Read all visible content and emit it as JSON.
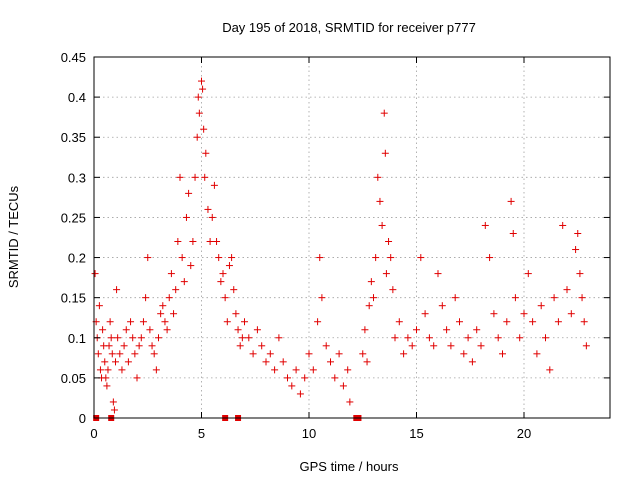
{
  "chart_data": {
    "type": "scatter",
    "title": "Day 195 of 2018, SRMTID for receiver p777",
    "xlabel": "GPS time / hours",
    "ylabel": "SRMTID / TECUs",
    "xlim": [
      0,
      24
    ],
    "ylim": [
      0,
      0.45
    ],
    "xticks": [
      0,
      5,
      10,
      15,
      20
    ],
    "yticks": [
      0,
      0.05,
      0.1,
      0.15,
      0.2,
      0.25,
      0.3,
      0.35,
      0.4,
      0.45
    ],
    "xtick_labels": [
      "0",
      "5",
      "10",
      "15",
      "20"
    ],
    "ytick_labels": [
      "0",
      "0.05",
      "0.1",
      "0.15",
      "0.2",
      "0.25",
      "0.3",
      "0.35",
      "0.4",
      "0.45"
    ],
    "grid": true,
    "marker": "+",
    "color": "#e00000",
    "series": [
      {
        "name": "SRMTID",
        "points": [
          [
            0.05,
            0.18
          ],
          [
            0.1,
            0.12
          ],
          [
            0.15,
            0.1
          ],
          [
            0.2,
            0.08
          ],
          [
            0.25,
            0.14
          ],
          [
            0.3,
            0.06
          ],
          [
            0.35,
            0.05
          ],
          [
            0.4,
            0.11
          ],
          [
            0.45,
            0.09
          ],
          [
            0.5,
            0.07
          ],
          [
            0.55,
            0.05
          ],
          [
            0.6,
            0.04
          ],
          [
            0.65,
            0.06
          ],
          [
            0.7,
            0.09
          ],
          [
            0.75,
            0.12
          ],
          [
            0.8,
            0.1
          ],
          [
            0.85,
            0.08
          ],
          [
            0.9,
            0.02
          ],
          [
            0.95,
            0.01
          ],
          [
            1.0,
            0.07
          ],
          [
            1.05,
            0.16
          ],
          [
            1.1,
            0.1
          ],
          [
            1.2,
            0.08
          ],
          [
            1.3,
            0.06
          ],
          [
            1.4,
            0.09
          ],
          [
            1.5,
            0.11
          ],
          [
            1.6,
            0.07
          ],
          [
            1.7,
            0.12
          ],
          [
            1.8,
            0.1
          ],
          [
            1.9,
            0.08
          ],
          [
            2.0,
            0.05
          ],
          [
            2.1,
            0.09
          ],
          [
            2.2,
            0.1
          ],
          [
            2.3,
            0.12
          ],
          [
            2.4,
            0.15
          ],
          [
            2.5,
            0.2
          ],
          [
            2.6,
            0.11
          ],
          [
            2.7,
            0.09
          ],
          [
            2.8,
            0.08
          ],
          [
            2.9,
            0.06
          ],
          [
            3.0,
            0.1
          ],
          [
            3.1,
            0.13
          ],
          [
            3.2,
            0.14
          ],
          [
            3.3,
            0.12
          ],
          [
            3.4,
            0.11
          ],
          [
            3.5,
            0.15
          ],
          [
            3.6,
            0.18
          ],
          [
            3.7,
            0.13
          ],
          [
            3.8,
            0.16
          ],
          [
            3.9,
            0.22
          ],
          [
            4.0,
            0.3
          ],
          [
            4.1,
            0.2
          ],
          [
            4.2,
            0.17
          ],
          [
            4.3,
            0.25
          ],
          [
            4.4,
            0.28
          ],
          [
            4.5,
            0.19
          ],
          [
            4.6,
            0.22
          ],
          [
            4.7,
            0.3
          ],
          [
            4.8,
            0.35
          ],
          [
            4.85,
            0.4
          ],
          [
            4.9,
            0.38
          ],
          [
            5.0,
            0.42
          ],
          [
            5.05,
            0.41
          ],
          [
            5.1,
            0.36
          ],
          [
            5.15,
            0.3
          ],
          [
            5.2,
            0.33
          ],
          [
            5.3,
            0.26
          ],
          [
            5.4,
            0.22
          ],
          [
            5.5,
            0.25
          ],
          [
            5.6,
            0.29
          ],
          [
            5.7,
            0.22
          ],
          [
            5.8,
            0.2
          ],
          [
            5.9,
            0.17
          ],
          [
            6.0,
            0.18
          ],
          [
            6.1,
            0.15
          ],
          [
            6.2,
            0.12
          ],
          [
            6.3,
            0.19
          ],
          [
            6.4,
            0.2
          ],
          [
            6.5,
            0.16
          ],
          [
            6.6,
            0.13
          ],
          [
            6.7,
            0.11
          ],
          [
            6.8,
            0.09
          ],
          [
            6.9,
            0.1
          ],
          [
            7.0,
            0.12
          ],
          [
            7.2,
            0.1
          ],
          [
            7.4,
            0.08
          ],
          [
            7.6,
            0.11
          ],
          [
            7.8,
            0.09
          ],
          [
            8.0,
            0.07
          ],
          [
            8.2,
            0.08
          ],
          [
            8.4,
            0.06
          ],
          [
            8.6,
            0.1
          ],
          [
            8.8,
            0.07
          ],
          [
            9.0,
            0.05
          ],
          [
            9.2,
            0.04
          ],
          [
            9.4,
            0.06
          ],
          [
            9.6,
            0.03
          ],
          [
            9.8,
            0.05
          ],
          [
            10.0,
            0.08
          ],
          [
            10.2,
            0.06
          ],
          [
            10.4,
            0.12
          ],
          [
            10.5,
            0.2
          ],
          [
            10.6,
            0.15
          ],
          [
            10.8,
            0.09
          ],
          [
            11.0,
            0.07
          ],
          [
            11.2,
            0.05
          ],
          [
            11.4,
            0.08
          ],
          [
            11.6,
            0.04
          ],
          [
            11.8,
            0.06
          ],
          [
            11.9,
            0.02
          ],
          [
            12.5,
            0.08
          ],
          [
            12.6,
            0.11
          ],
          [
            12.7,
            0.07
          ],
          [
            12.8,
            0.14
          ],
          [
            12.9,
            0.17
          ],
          [
            13.0,
            0.15
          ],
          [
            13.1,
            0.2
          ],
          [
            13.2,
            0.3
          ],
          [
            13.3,
            0.27
          ],
          [
            13.4,
            0.24
          ],
          [
            13.5,
            0.38
          ],
          [
            13.55,
            0.33
          ],
          [
            13.6,
            0.18
          ],
          [
            13.7,
            0.22
          ],
          [
            13.8,
            0.2
          ],
          [
            13.9,
            0.16
          ],
          [
            14.0,
            0.1
          ],
          [
            14.2,
            0.12
          ],
          [
            14.4,
            0.08
          ],
          [
            14.6,
            0.1
          ],
          [
            14.8,
            0.09
          ],
          [
            15.0,
            0.11
          ],
          [
            15.2,
            0.2
          ],
          [
            15.4,
            0.13
          ],
          [
            15.6,
            0.1
          ],
          [
            15.8,
            0.09
          ],
          [
            16.0,
            0.18
          ],
          [
            16.2,
            0.14
          ],
          [
            16.4,
            0.11
          ],
          [
            16.6,
            0.09
          ],
          [
            16.8,
            0.15
          ],
          [
            17.0,
            0.12
          ],
          [
            17.2,
            0.08
          ],
          [
            17.4,
            0.1
          ],
          [
            17.6,
            0.07
          ],
          [
            17.8,
            0.11
          ],
          [
            18.0,
            0.09
          ],
          [
            18.2,
            0.24
          ],
          [
            18.4,
            0.2
          ],
          [
            18.6,
            0.13
          ],
          [
            18.8,
            0.1
          ],
          [
            19.0,
            0.08
          ],
          [
            19.2,
            0.12
          ],
          [
            19.4,
            0.27
          ],
          [
            19.5,
            0.23
          ],
          [
            19.6,
            0.15
          ],
          [
            19.8,
            0.1
          ],
          [
            20.0,
            0.13
          ],
          [
            20.2,
            0.18
          ],
          [
            20.4,
            0.12
          ],
          [
            20.6,
            0.08
          ],
          [
            20.8,
            0.14
          ],
          [
            21.0,
            0.1
          ],
          [
            21.2,
            0.06
          ],
          [
            21.4,
            0.15
          ],
          [
            21.6,
            0.12
          ],
          [
            21.8,
            0.24
          ],
          [
            22.0,
            0.16
          ],
          [
            22.2,
            0.13
          ],
          [
            22.4,
            0.21
          ],
          [
            22.5,
            0.23
          ],
          [
            22.6,
            0.18
          ],
          [
            22.7,
            0.15
          ],
          [
            22.8,
            0.12
          ],
          [
            22.9,
            0.09
          ]
        ],
        "zero_markers_x": [
          0.1,
          0.8,
          6.1,
          6.7,
          12.2,
          12.3
        ]
      }
    ]
  }
}
